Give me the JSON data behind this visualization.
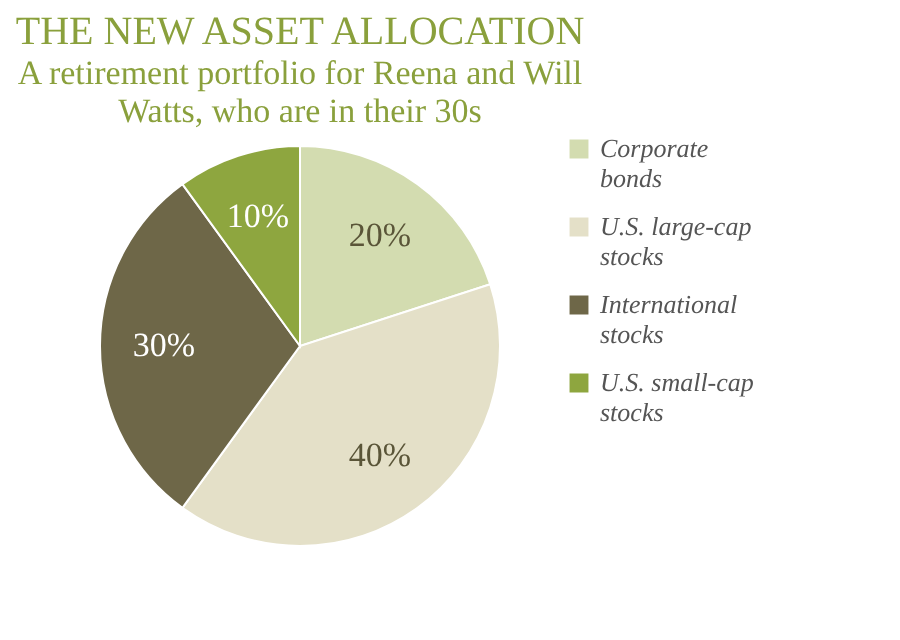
{
  "chart_data": {
    "type": "pie",
    "title": "THE NEW ASSET ALLOCATION",
    "subtitle": "A retirement portfolio for Reena and Will Watts, who are in their 30s",
    "categories": [
      "Corporate bonds",
      "U.S. large-cap stocks",
      "International stocks",
      "U.S. small-cap stocks"
    ],
    "values": [
      20,
      40,
      30,
      10
    ],
    "value_labels": [
      "20%",
      "40%",
      "30%",
      "10%"
    ],
    "colors": [
      "#d3dcb0",
      "#e4e0c8",
      "#6e6748",
      "#8ea63f"
    ],
    "legend": "right"
  }
}
